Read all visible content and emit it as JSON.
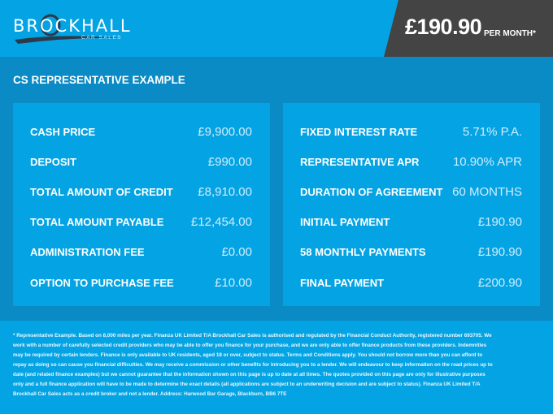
{
  "header": {
    "logo": {
      "brand": "BROCKHALL",
      "tagline": "CAR SALES"
    },
    "monthly_price": "£190.90",
    "per_month_label": "PER MONTH*"
  },
  "section_title": "CS REPRESENTATIVE EXAMPLE",
  "left_panel": [
    {
      "label": "CASH PRICE",
      "value": "£9,900.00"
    },
    {
      "label": "DEPOSIT",
      "value": "£990.00"
    },
    {
      "label": "TOTAL AMOUNT OF CREDIT",
      "value": "£8,910.00"
    },
    {
      "label": "TOTAL AMOUNT PAYABLE",
      "value": "£12,454.00"
    },
    {
      "label": "ADMINISTRATION FEE",
      "value": "£0.00"
    },
    {
      "label": "OPTION TO PURCHASE FEE",
      "value": "£10.00"
    }
  ],
  "right_panel": [
    {
      "label": "FIXED INTEREST RATE",
      "value": "5.71% P.A."
    },
    {
      "label": "REPRESENTATIVE APR",
      "value": "10.90% APR"
    },
    {
      "label": "DURATION OF AGREEMENT",
      "value": "60 MONTHS"
    },
    {
      "label": "INITIAL PAYMENT",
      "value": "£190.90"
    },
    {
      "label": "58 MONTHLY PAYMENTS",
      "value": "£190.90"
    },
    {
      "label": "FINAL PAYMENT",
      "value": "£200.90"
    }
  ],
  "footer_text": "* Representative Example. Based on 8,000 miles per year. Finanza UK Limited T/A Brockhall Car Sales is authorised and regulated by the Financial Conduct Authority, registered number 693705. We work with a number of carefully selected credit providers who may be able to offer you finance for your purchase, and we are only able to offer finance products from these providers. Indemnities may be required by certain lenders. Finance is only available to UK residents, aged 18 or over, subject to status. Terms and Conditions apply. You should not borrow more than you can afford to repay as doing so can cause you financial difficulties. We may receive a commission or other benefits for introducing you to a lender. We will endeavour to keep information on the road prices up to date (and related finance examples) but we cannot guarantee that the information shown on this page is up to date at all times. The quotes provided on this page are only for illustrative purposes only and a full finance application will have to be made to determine the exact details (all applications are subject to an underwriting decision and are subject to status). Finanza UK Limited T/A Brockhall Car Sales acts as a credit broker and not a lender. Address: Harwood Bar Garage, Blackburn, BB6 7TE",
  "colors": {
    "primary": "#04a3e3",
    "band": "#0a8bc5",
    "dark_tab": "#444444"
  }
}
